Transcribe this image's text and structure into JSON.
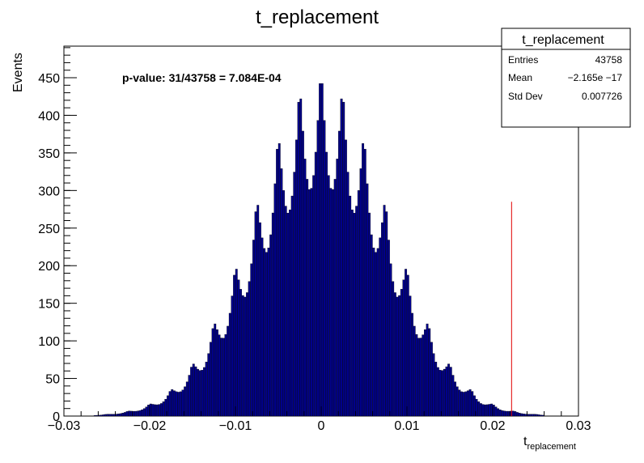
{
  "chart_data": {
    "type": "bar",
    "title": "t_replacement",
    "xlabel_main": "t",
    "xlabel_sub": "replacement",
    "ylabel": "Events",
    "xlim": [
      -0.03,
      0.03
    ],
    "ylim": [
      0,
      492
    ],
    "x_ticks": [
      -0.03,
      -0.02,
      -0.01,
      0,
      0.01,
      0.02,
      0.03
    ],
    "x_tick_labels": [
      "−0.03",
      "−0.02",
      "−0.01",
      "0",
      "0.01",
      "0.02",
      "0.03"
    ],
    "y_ticks": [
      0,
      50,
      100,
      150,
      200,
      250,
      300,
      350,
      400,
      450
    ],
    "y_tick_labels": [
      "0",
      "50",
      "100",
      "150",
      "200",
      "250",
      "300",
      "350",
      "400",
      "450"
    ],
    "grid": false,
    "legend": "none",
    "bar_color": "#00008b",
    "marker_color": "#e00000",
    "histogram": {
      "mean": 0.0,
      "std": 0.007726,
      "peak": 468,
      "bin_width": 0.00025,
      "modulation": 0.35,
      "modulation_period": 0.0025
    },
    "marker_line": {
      "x": 0.0222,
      "height": 285
    },
    "annotation": "p-value: 31/43758 = 7.084E-04",
    "stats_box": {
      "title": "t_replacement",
      "rows": [
        {
          "label": "Entries",
          "value": "43758"
        },
        {
          "label": "Mean",
          "value": "−2.165e −17"
        },
        {
          "label": "Std Dev",
          "value": "0.007726"
        }
      ]
    }
  }
}
